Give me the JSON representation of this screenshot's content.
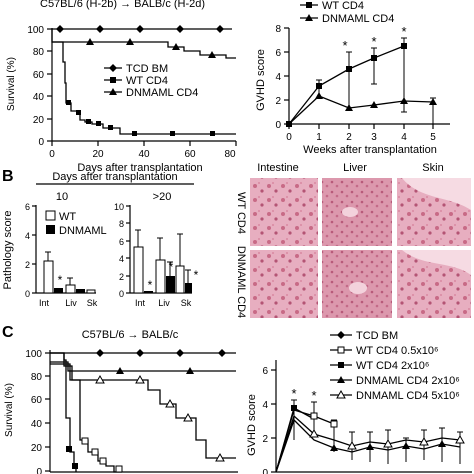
{
  "panel_A": {
    "title_left": "C57BL/6 (H-2b) → BALB/c (H-2d)",
    "survival": {
      "ylabel": "Survival (%)",
      "xlabel": "Days after transplantation",
      "yticks": [
        "0",
        "20",
        "40",
        "60",
        "80",
        "100"
      ],
      "xticks": [
        "0",
        "20",
        "40",
        "60",
        "80"
      ],
      "legend": [
        "TCD BM",
        "WT CD4",
        "DNMAML CD4"
      ]
    },
    "gvhd": {
      "legend": [
        "WT CD4",
        "DNMAML CD4"
      ],
      "ylabel": "GVHD score",
      "xlabel": "Weeks after transplantation",
      "yticks": [
        "0",
        "2",
        "4",
        "6",
        "8"
      ],
      "xticks": [
        "0",
        "1",
        "2",
        "3",
        "4",
        "5"
      ],
      "stars": [
        "*",
        "*",
        "*"
      ]
    }
  },
  "panel_B": {
    "label": "B",
    "xheader": "Days after transplantation",
    "groups": [
      "10",
      ">20"
    ],
    "ylabel": "Pathology score",
    "yticks_left": [
      "0",
      "2",
      "4",
      "6"
    ],
    "yticks_right": [
      "0",
      "2",
      "4",
      "6",
      "8",
      "10"
    ],
    "categories": [
      "Int",
      "Liv",
      "Sk"
    ],
    "legend": [
      "WT",
      "DNMAML"
    ],
    "stars": [
      "*",
      "*",
      "*",
      "*"
    ],
    "hist_cols": [
      "Intestine",
      "Liver",
      "Skin"
    ],
    "hist_rows": [
      "WT CD4",
      "DNMAML CD4"
    ]
  },
  "panel_C": {
    "label": "C",
    "title": "C57BL/6 → BALB/c",
    "survival": {
      "ylabel": "Survival (%)",
      "yticks": [
        "0",
        "20",
        "40",
        "60",
        "80",
        "100"
      ]
    },
    "gvhd": {
      "ylabel": "GVHD score",
      "yticks": [
        "0",
        "2",
        "4",
        "6"
      ],
      "stars": [
        "*",
        "*"
      ]
    },
    "legend": [
      "TCD BM",
      "WT CD4 0.5x10⁶",
      "WT CD4 2x10⁶",
      "DNMAML CD4 2x10⁶",
      "DNMAML CD4 5x10⁶"
    ]
  },
  "colors": {
    "ink": "#000000",
    "tissue_pink": "#c86a86",
    "tissue_light": "#efc3d0"
  },
  "chart_data": [
    {
      "type": "line",
      "ylabel": "Survival (%)",
      "xlabel": "Days after transplantation",
      "xlim": [
        0,
        80
      ],
      "ylim": [
        0,
        100
      ],
      "series": [
        {
          "name": "TCD BM",
          "x": [
            0,
            78
          ],
          "y": [
            100,
            100
          ]
        },
        {
          "name": "WT CD4",
          "x": [
            0,
            5,
            8,
            12,
            20,
            30,
            45,
            60,
            78
          ],
          "y": [
            100,
            35,
            18,
            12,
            8,
            5,
            5,
            5,
            5
          ]
        },
        {
          "name": "DNMAML CD4",
          "x": [
            0,
            20,
            50,
            60,
            66,
            72,
            78
          ],
          "y": [
            88,
            88,
            88,
            82,
            77,
            73,
            73
          ]
        }
      ]
    },
    {
      "type": "line",
      "ylabel": "GVHD score",
      "xlabel": "Weeks after transplantation",
      "xlim": [
        0,
        5.5
      ],
      "ylim": [
        0,
        8
      ],
      "series": [
        {
          "name": "WT CD4",
          "x": [
            0,
            1,
            2,
            3,
            4
          ],
          "y": [
            0,
            3.2,
            4.6,
            5.5,
            6.5
          ]
        },
        {
          "name": "DNMAML CD4",
          "x": [
            0,
            1,
            2,
            3,
            4,
            5
          ],
          "y": [
            0,
            2.3,
            1.3,
            1.6,
            1.9,
            1.8
          ]
        }
      ]
    },
    {
      "type": "bar",
      "xlabel": "Days after transplantation",
      "ylabel": "Pathology score",
      "groups": [
        {
          "name": "10",
          "categories": [
            "Int",
            "Liv",
            "Sk"
          ],
          "ylim": [
            0,
            6
          ],
          "series": [
            {
              "name": "WT",
              "values": [
                3.3,
                1.0,
                0.3
              ]
            },
            {
              "name": "DNMAML",
              "values": [
                0.3,
                0.3,
                0.1
              ]
            }
          ]
        },
        {
          "name": ">20",
          "categories": [
            "Int",
            "Liv",
            "Sk"
          ],
          "ylim": [
            0,
            10
          ],
          "series": [
            {
              "name": "WT",
              "values": [
                5.5,
                4.0,
                3.2
              ]
            },
            {
              "name": "DNMAML",
              "values": [
                0.2,
                2.0,
                1.2
              ]
            }
          ]
        }
      ]
    },
    {
      "type": "line",
      "ylabel": "Survival (%)",
      "xlim": [
        0,
        80
      ],
      "ylim": [
        0,
        100
      ],
      "series": [
        {
          "name": "TCD BM",
          "x": [
            0,
            75
          ],
          "y": [
            100,
            100
          ]
        },
        {
          "name": "WT CD4 0.5x10⁶",
          "x": [
            0,
            8,
            14,
            20,
            25,
            28,
            30,
            36
          ],
          "y": [
            100,
            72,
            25,
            12,
            5,
            3,
            0,
            0
          ]
        },
        {
          "name": "WT CD4 2x10⁶",
          "x": [
            0,
            4,
            8,
            12,
            16
          ],
          "y": [
            100,
            90,
            20,
            2,
            0
          ]
        },
        {
          "name": "DNMAML CD4 2x10⁶",
          "x": [
            0,
            10,
            40,
            75
          ],
          "y": [
            90,
            85,
            85,
            85
          ]
        },
        {
          "name": "DNMAML CD4 5x10⁶",
          "x": [
            0,
            10,
            40,
            50,
            58,
            65,
            70,
            75
          ],
          "y": [
            82,
            80,
            78,
            72,
            60,
            50,
            32,
            30
          ]
        }
      ]
    },
    {
      "type": "line",
      "ylabel": "GVHD score",
      "ylim": [
        0,
        6
      ],
      "series": [
        {
          "name": "WT CD4 0.5x10⁶",
          "x": [
            0,
            1,
            2,
            3,
            4
          ],
          "y": [
            0,
            4.4,
            4.6,
            4.2,
            3.6
          ]
        },
        {
          "name": "WT CD4 2x10⁶",
          "x": [
            0,
            1,
            2
          ],
          "y": [
            0,
            4.8,
            3.9
          ]
        },
        {
          "name": "DNMAML CD4 2x10⁶",
          "x": [
            0,
            1,
            2,
            3,
            4,
            5,
            6,
            7,
            8,
            9,
            10,
            11,
            12
          ],
          "y": [
            0,
            3.8,
            2.2,
            1.6,
            1.2,
            1.5,
            1.3,
            1.8,
            1.5,
            1.9,
            1.7,
            1.6,
            1.5
          ]
        },
        {
          "name": "DNMAML CD4 5x10⁶",
          "x": [
            0,
            1,
            2,
            3,
            4,
            5,
            6,
            7,
            8,
            9,
            10,
            11,
            12
          ],
          "y": [
            0,
            4.0,
            2.6,
            1.9,
            1.5,
            1.8,
            1.6,
            2.0,
            1.8,
            2.1,
            1.9,
            1.8,
            1.7
          ]
        }
      ]
    }
  ]
}
